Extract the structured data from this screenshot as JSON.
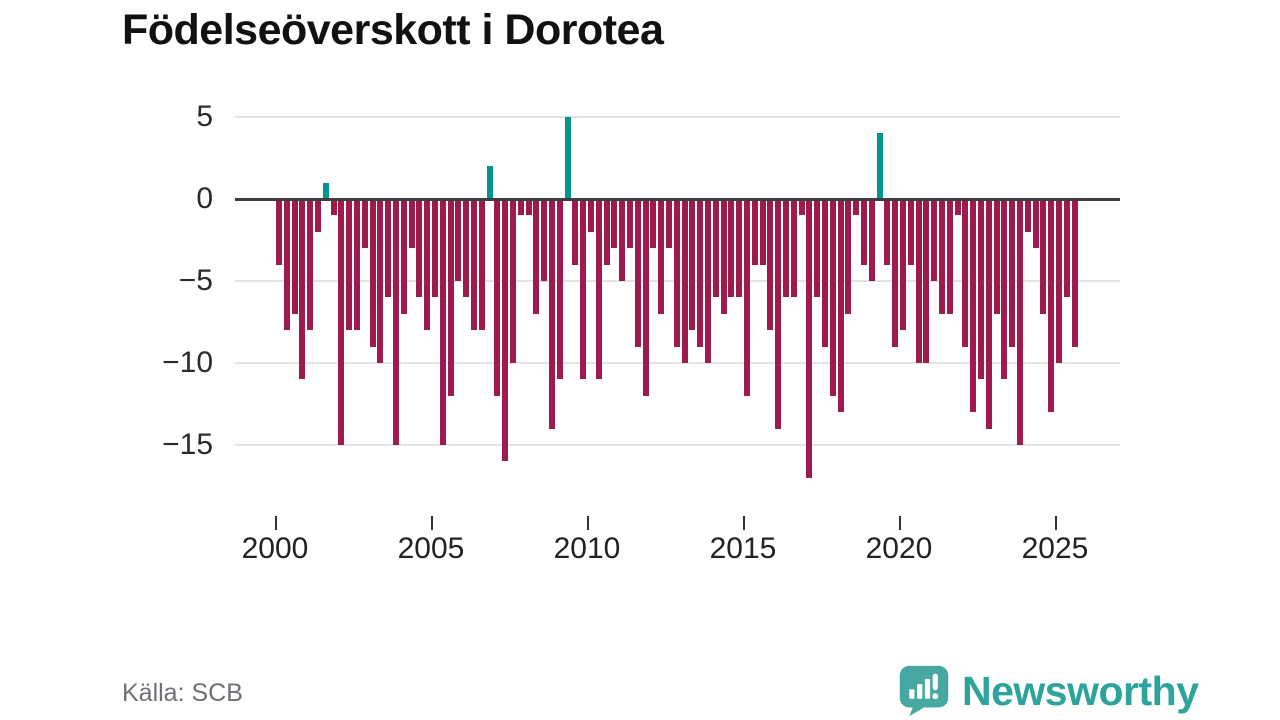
{
  "title": "Födelseöverskott i Dorotea",
  "source": "Källa: SCB",
  "logo": {
    "text": "Newsworthy"
  },
  "chart_data": {
    "type": "bar",
    "title": "Födelseöverskott i Dorotea",
    "frequency": "quarterly",
    "x_tick_labels": [
      "2000",
      "2005",
      "2010",
      "2015",
      "2020",
      "2025"
    ],
    "y_tick_labels": [
      "5",
      "0",
      "−5",
      "−10",
      "−15"
    ],
    "y_gridline_values": [
      5,
      0,
      -5,
      -10,
      -15
    ],
    "ylim": [
      -17.5,
      5.5
    ],
    "grid": "horizontal",
    "legend": "none",
    "colors": {
      "negative_bar": "#9f1a4f",
      "positive_bar": "#00968c"
    },
    "values_by_year": {
      "2000": [
        -4,
        -8,
        -7,
        -11
      ],
      "2001": [
        -8,
        -2,
        1,
        -1
      ],
      "2002": [
        -15,
        -8,
        -8,
        -3
      ],
      "2003": [
        -9,
        -10,
        -6,
        -15
      ],
      "2004": [
        -7,
        -3,
        -6,
        -8
      ],
      "2005": [
        -6,
        -15,
        -12,
        -5
      ],
      "2006": [
        -6,
        -8,
        -8,
        2
      ],
      "2007": [
        -12,
        -16,
        -10,
        -1
      ],
      "2008": [
        -1,
        -7,
        -5,
        -14
      ],
      "2009": [
        -11,
        5,
        -4,
        -11
      ],
      "2010": [
        -2,
        -11,
        -4,
        -3
      ],
      "2011": [
        -5,
        -3,
        -9,
        -12
      ],
      "2012": [
        -3,
        -7,
        -3,
        -9
      ],
      "2013": [
        -10,
        -8,
        -9,
        -10
      ],
      "2014": [
        -6,
        -7,
        -6,
        -6
      ],
      "2015": [
        -12,
        -4,
        -4,
        -8
      ],
      "2016": [
        -14,
        -6,
        -6,
        -1
      ],
      "2017": [
        -17,
        -6,
        -9,
        -12
      ],
      "2018": [
        -13,
        -7,
        -1,
        -4
      ],
      "2019": [
        -5,
        4,
        -4,
        -9
      ],
      "2020": [
        -8,
        -4,
        -10,
        -10
      ],
      "2021": [
        -5,
        -7,
        -7,
        -1
      ],
      "2022": [
        -9,
        -13,
        -11,
        -14
      ],
      "2023": [
        -7,
        -11,
        -9,
        -15
      ],
      "2024": [
        -2,
        -3,
        -7,
        -13
      ],
      "2025": [
        -10,
        -6,
        -9
      ]
    }
  }
}
